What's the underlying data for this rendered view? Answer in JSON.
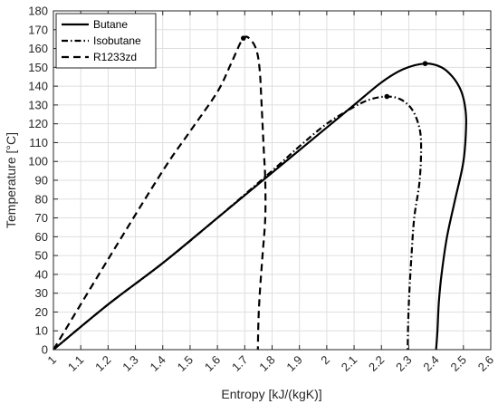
{
  "chart_data": {
    "type": "line",
    "title": "",
    "xlabel": "Entropy [kJ/(kgK)]",
    "ylabel": "Temperature [°C]",
    "xlim": [
      1,
      2.6
    ],
    "ylim": [
      0,
      180
    ],
    "xticks": [
      1,
      1.1,
      1.2,
      1.3,
      1.4,
      1.5,
      1.6,
      1.7,
      1.8,
      1.9,
      2,
      2.1,
      2.2,
      2.3,
      2.4,
      2.5,
      2.6
    ],
    "xtick_labels": [
      "1",
      "1.1",
      "1.2",
      "1.3",
      "1.4",
      "1.5",
      "1.6",
      "1.7",
      "1.8",
      "1.9",
      "2",
      "2.1",
      "2.2",
      "2.3",
      "2.4",
      "2.5",
      "2.6"
    ],
    "yticks": [
      0,
      10,
      20,
      30,
      40,
      50,
      60,
      70,
      80,
      90,
      100,
      110,
      120,
      130,
      140,
      150,
      160,
      170,
      180
    ],
    "ytick_labels": [
      "0",
      "10",
      "20",
      "30",
      "40",
      "50",
      "60",
      "70",
      "80",
      "90",
      "100",
      "110",
      "120",
      "130",
      "140",
      "150",
      "160",
      "170",
      "180"
    ],
    "grid": true,
    "legend_position": "top-left",
    "series": [
      {
        "name": "Butane",
        "line_style": "solid",
        "color": "#000000",
        "critical_point": [
          2.36,
          152
        ],
        "x": [
          1.0,
          1.2,
          1.4,
          1.6,
          1.8,
          2.0,
          2.1,
          2.2,
          2.28,
          2.36,
          2.42,
          2.46,
          2.49,
          2.505,
          2.51,
          2.5,
          2.47,
          2.44,
          2.42,
          2.41,
          2.405,
          2.4
        ],
        "y": [
          0,
          24,
          46,
          70,
          94,
          118,
          130,
          142,
          149,
          152,
          150,
          145,
          138,
          130,
          120,
          100,
          80,
          60,
          40,
          25,
          10,
          0
        ]
      },
      {
        "name": "Isobutane",
        "line_style": "dashdot",
        "color": "#000000",
        "critical_point": [
          2.22,
          134.5
        ],
        "x": [
          1.0,
          1.2,
          1.4,
          1.6,
          1.8,
          1.9,
          2.0,
          2.1,
          2.16,
          2.22,
          2.27,
          2.31,
          2.335,
          2.345,
          2.34,
          2.32,
          2.31,
          2.302,
          2.298,
          2.296
        ],
        "y": [
          0,
          24,
          46,
          70,
          95,
          108,
          120,
          129,
          133,
          134.5,
          133,
          128,
          120,
          110,
          90,
          70,
          50,
          30,
          15,
          0
        ]
      },
      {
        "name": "R1233zd",
        "line_style": "dashed",
        "color": "#000000",
        "critical_point": [
          1.695,
          165.5
        ],
        "x": [
          1.0,
          1.2,
          1.4,
          1.5,
          1.6,
          1.65,
          1.695,
          1.725,
          1.745,
          1.755,
          1.76,
          1.765,
          1.77,
          1.775,
          1.775,
          1.765,
          1.755,
          1.75,
          1.748
        ],
        "y": [
          0,
          48,
          95,
          116,
          137,
          152,
          165.5,
          164,
          158,
          148,
          135,
          120,
          105,
          90,
          70,
          50,
          30,
          15,
          0
        ]
      }
    ]
  }
}
